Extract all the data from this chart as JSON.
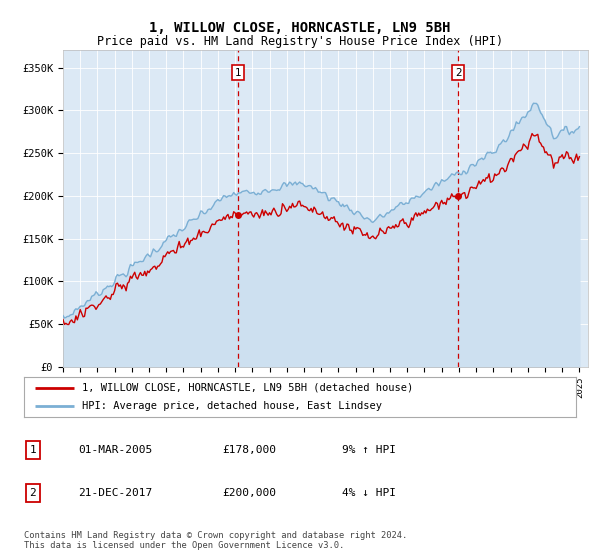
{
  "title": "1, WILLOW CLOSE, HORNCASTLE, LN9 5BH",
  "subtitle": "Price paid vs. HM Land Registry's House Price Index (HPI)",
  "ylim": [
    0,
    370000
  ],
  "yticks": [
    0,
    50000,
    100000,
    150000,
    200000,
    250000,
    300000,
    350000
  ],
  "ytick_labels": [
    "£0",
    "£50K",
    "£100K",
    "£150K",
    "£200K",
    "£250K",
    "£300K",
    "£350K"
  ],
  "bg_color": "#dce9f5",
  "line1_color": "#cc0000",
  "line2_color": "#7bafd4",
  "line2_fill": "#dce9f5",
  "sale1_year": 2005.17,
  "sale1_price": 178000,
  "sale2_year": 2017.96,
  "sale2_price": 200000,
  "legend_line1": "1, WILLOW CLOSE, HORNCASTLE, LN9 5BH (detached house)",
  "legend_line2": "HPI: Average price, detached house, East Lindsey",
  "table_row1": [
    "1",
    "01-MAR-2005",
    "£178,000",
    "9% ↑ HPI"
  ],
  "table_row2": [
    "2",
    "21-DEC-2017",
    "£200,000",
    "4% ↓ HPI"
  ],
  "footer": "Contains HM Land Registry data © Crown copyright and database right 2024.\nThis data is licensed under the Open Government Licence v3.0.",
  "x_start_year": 1995,
  "x_end_year": 2025
}
